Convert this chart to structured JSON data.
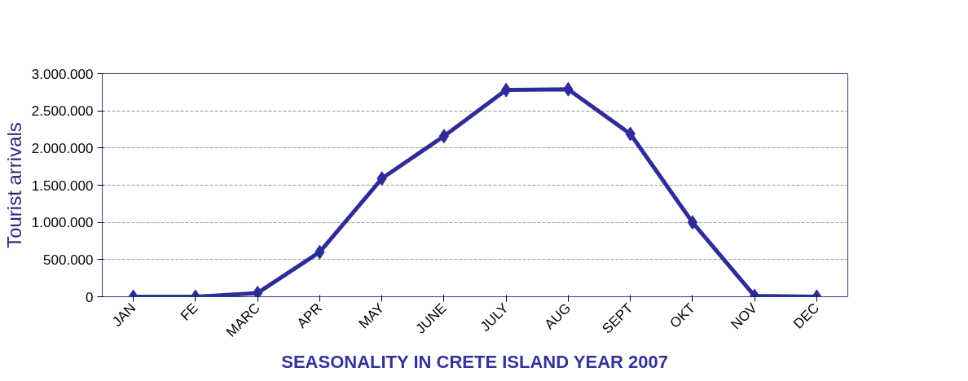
{
  "chart_data": {
    "type": "line",
    "xlabel": "SEASONALITY IN CRETE ISLAND YEAR 2007",
    "ylabel": "Tourist arrivals",
    "categories": [
      "JAN",
      "FE",
      "MARC",
      "APR",
      "MAY",
      "JUNE",
      "JULY",
      "AUG",
      "SEPT",
      "OKT",
      "NOV",
      "DEC"
    ],
    "series": [
      {
        "color": "#2e2c9a",
        "values": [
          0,
          0,
          50000,
          600000,
          1590000,
          2160000,
          2780000,
          2790000,
          2190000,
          1000000,
          10000,
          0
        ]
      }
    ],
    "ylim": [
      0,
      3000000
    ],
    "yticks": [
      {
        "value": 0,
        "label": "0"
      },
      {
        "value": 500000,
        "label": "500.000"
      },
      {
        "value": 1000000,
        "label": "1.000.000"
      },
      {
        "value": 1500000,
        "label": "1.500.000"
      },
      {
        "value": 2000000,
        "label": "2.000.000"
      },
      {
        "value": 2500000,
        "label": "2.500.000"
      },
      {
        "value": 3000000,
        "label": "3.000.000"
      }
    ],
    "grid": "y",
    "marker": "diamond",
    "line_style": "solid"
  }
}
